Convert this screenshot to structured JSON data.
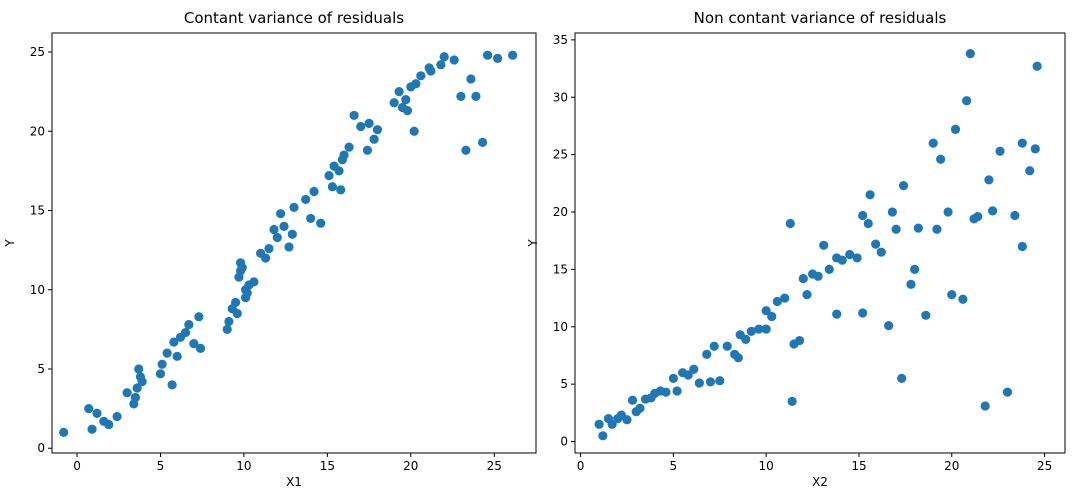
{
  "colors": {
    "marker": "#1f77b4",
    "axis": "#000000",
    "background": "#ffffff"
  },
  "chart_data": [
    {
      "type": "scatter",
      "title": "Contant variance of residuals",
      "xlabel": "X1",
      "ylabel": "Y",
      "xlim": [
        -1.5,
        27.5
      ],
      "ylim": [
        -0.3,
        26.2
      ],
      "xticks": [
        0,
        5,
        10,
        15,
        20,
        25
      ],
      "yticks": [
        0,
        5,
        10,
        15,
        20,
        25
      ],
      "xtick_labels": [
        "0",
        "5",
        "10",
        "15",
        "20",
        "25"
      ],
      "ytick_labels": [
        "0",
        "5",
        "10",
        "15",
        "20",
        "25"
      ],
      "grid": false,
      "x": [
        -0.8,
        0.7,
        0.9,
        1.2,
        1.6,
        1.9,
        2.4,
        3.0,
        3.4,
        3.5,
        3.6,
        3.7,
        3.8,
        3.9,
        5.0,
        5.1,
        5.4,
        5.7,
        5.8,
        6.0,
        6.2,
        6.5,
        6.7,
        7.0,
        7.3,
        7.4,
        9.0,
        9.1,
        9.3,
        9.5,
        9.6,
        9.7,
        9.8,
        9.8,
        9.9,
        10.1,
        10.1,
        10.2,
        10.3,
        10.6,
        11.0,
        11.3,
        11.5,
        11.8,
        12.0,
        12.2,
        12.4,
        12.7,
        12.9,
        13.0,
        13.7,
        14.0,
        14.2,
        14.6,
        15.1,
        15.3,
        15.4,
        15.7,
        15.9,
        16.0,
        16.3,
        16.6,
        17.0,
        17.4,
        17.5,
        17.8,
        18.0,
        19.0,
        19.3,
        19.5,
        19.7,
        19.8,
        20.0,
        20.3,
        20.6,
        21.1,
        21.2,
        21.8,
        22.0,
        22.6,
        23.0,
        23.3,
        23.6,
        24.3,
        24.6,
        25.2,
        26.1,
        23.9,
        20.2,
        15.8
      ],
      "y": [
        1.0,
        2.5,
        1.2,
        2.2,
        1.7,
        1.5,
        2.0,
        3.5,
        2.8,
        3.2,
        3.8,
        5.0,
        4.5,
        4.2,
        4.7,
        5.3,
        6.0,
        4.0,
        6.7,
        5.8,
        7.0,
        7.3,
        7.8,
        6.6,
        8.3,
        6.3,
        7.5,
        8.0,
        8.8,
        9.2,
        8.5,
        10.8,
        11.2,
        11.7,
        11.4,
        10.0,
        9.5,
        9.8,
        10.3,
        10.5,
        12.3,
        12.0,
        12.6,
        13.8,
        13.3,
        14.8,
        14.0,
        12.7,
        13.5,
        15.2,
        15.7,
        14.5,
        16.2,
        14.2,
        17.2,
        16.5,
        17.8,
        17.5,
        18.2,
        18.5,
        19.0,
        21.0,
        20.3,
        18.8,
        20.5,
        19.5,
        20.1,
        21.8,
        22.5,
        21.5,
        22.0,
        21.3,
        22.8,
        23.0,
        23.5,
        24.0,
        23.8,
        24.2,
        24.7,
        24.5,
        22.2,
        18.8,
        23.3,
        19.3,
        24.8,
        24.6,
        24.8,
        22.2,
        20.0,
        16.3
      ]
    },
    {
      "type": "scatter",
      "title": "Non contant variance of residuals",
      "xlabel": "X2",
      "ylabel": "Y",
      "xlim": [
        -0.3,
        26.1
      ],
      "ylim": [
        -1.0,
        35.6
      ],
      "xticks": [
        0,
        5,
        10,
        15,
        20,
        25
      ],
      "yticks": [
        0,
        5,
        10,
        15,
        20,
        25,
        30,
        35
      ],
      "xtick_labels": [
        "0",
        "5",
        "10",
        "15",
        "20",
        "25"
      ],
      "ytick_labels": [
        "0",
        "5",
        "10",
        "15",
        "20",
        "25",
        "30",
        "35"
      ],
      "grid": false,
      "x": [
        1.0,
        1.2,
        1.5,
        1.7,
        2.0,
        2.2,
        2.5,
        2.8,
        3.0,
        3.2,
        3.5,
        3.8,
        4.0,
        4.3,
        4.6,
        5.0,
        5.2,
        5.5,
        5.8,
        6.1,
        6.4,
        6.8,
        7.0,
        7.2,
        7.5,
        7.9,
        8.3,
        8.6,
        8.9,
        9.2,
        9.6,
        10.0,
        10.3,
        10.6,
        11.0,
        11.3,
        11.5,
        11.8,
        12.0,
        12.5,
        12.8,
        13.1,
        13.4,
        13.8,
        14.1,
        14.5,
        14.9,
        15.2,
        15.6,
        15.9,
        16.2,
        16.6,
        17.0,
        17.4,
        17.8,
        18.2,
        18.6,
        19.0,
        19.4,
        19.8,
        20.2,
        20.6,
        21.0,
        21.4,
        21.8,
        22.2,
        22.6,
        23.0,
        23.4,
        23.8,
        24.2,
        24.6,
        20.8,
        21.2,
        22.0,
        23.8,
        24.5,
        15.2,
        16.8,
        18.0,
        13.8,
        11.4,
        12.2,
        17.3,
        19.2,
        15.5,
        20.0,
        10.0,
        8.5
      ],
      "y": [
        1.5,
        0.5,
        2.0,
        1.5,
        2.0,
        2.3,
        1.9,
        3.6,
        2.6,
        2.9,
        3.7,
        3.8,
        4.2,
        4.4,
        4.3,
        5.5,
        4.4,
        6.0,
        5.8,
        6.3,
        5.1,
        7.6,
        5.2,
        8.3,
        5.3,
        8.3,
        7.6,
        9.3,
        8.9,
        9.6,
        9.8,
        11.4,
        10.9,
        12.2,
        12.5,
        19.0,
        8.5,
        8.8,
        14.2,
        14.6,
        14.4,
        17.1,
        15.0,
        16.0,
        15.8,
        16.3,
        16.0,
        19.7,
        21.5,
        17.2,
        16.5,
        10.1,
        18.5,
        22.3,
        13.7,
        18.6,
        11.0,
        26.0,
        24.6,
        20.0,
        27.2,
        12.4,
        33.8,
        19.6,
        3.1,
        20.1,
        25.3,
        4.3,
        19.7,
        26.0,
        23.6,
        32.7,
        29.7,
        19.4,
        22.8,
        17.0,
        25.5,
        11.2,
        20.0,
        15.0,
        11.1,
        3.5,
        12.8,
        5.5,
        18.5,
        19.0,
        12.8,
        9.8,
        7.3
      ]
    }
  ]
}
